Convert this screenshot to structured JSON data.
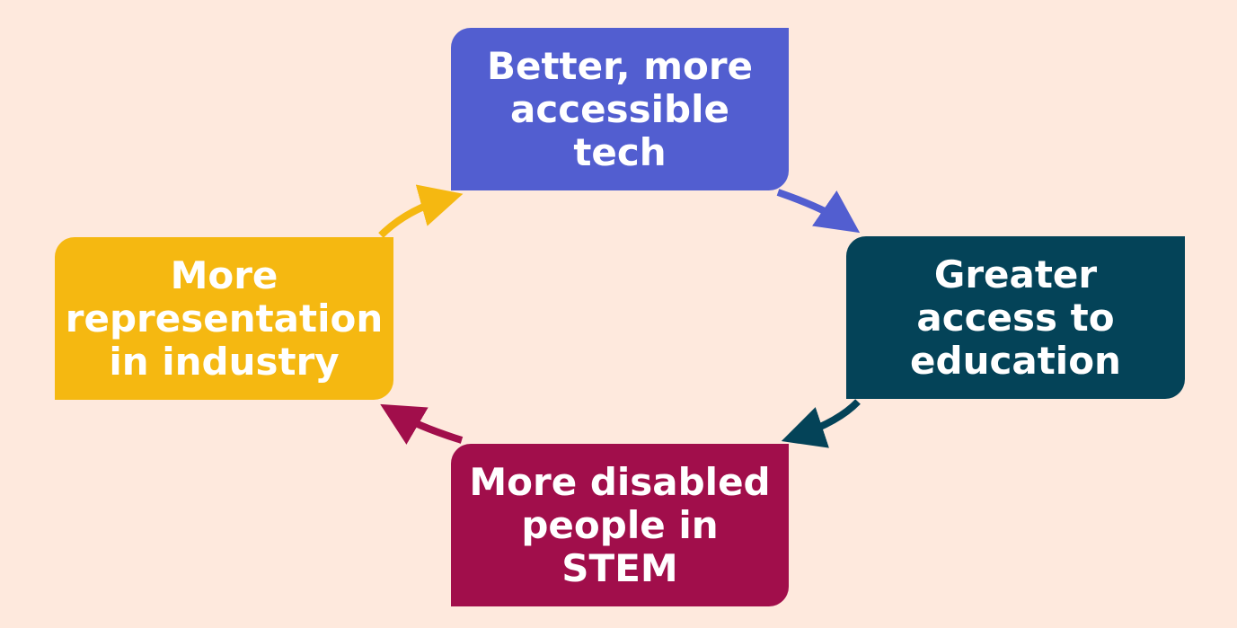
{
  "background": "#fee9dd",
  "nodes": [
    {
      "id": "top",
      "text": "Better, more accessible tech",
      "color": "#525ed0"
    },
    {
      "id": "right",
      "text": "Greater access to education",
      "color": "#044358"
    },
    {
      "id": "bottom",
      "text": "More disabled people in STEM",
      "color": "#a10e4b"
    },
    {
      "id": "left",
      "text": "More representation in industry",
      "color": "#f5b811"
    }
  ],
  "arrows": [
    {
      "from": "top",
      "to": "right",
      "color": "#525ed0"
    },
    {
      "from": "right",
      "to": "bottom",
      "color": "#044358"
    },
    {
      "from": "bottom",
      "to": "left",
      "color": "#a10e4b"
    },
    {
      "from": "left",
      "to": "top",
      "color": "#f5b811"
    }
  ]
}
